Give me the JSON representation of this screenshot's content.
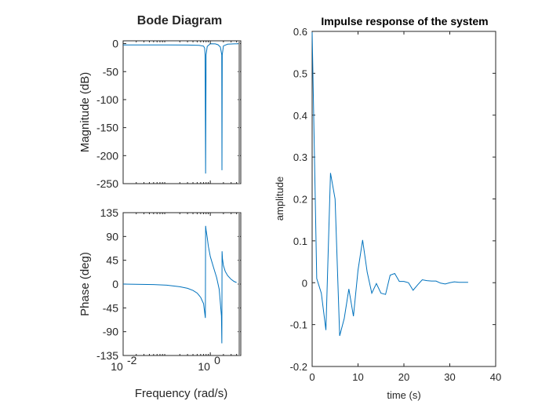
{
  "chart_data": [
    {
      "type": "line",
      "title": "Bode Diagram",
      "xlabel": "Frequency (rad/s)",
      "xscale": "log",
      "xlim": [
        0.01,
        5
      ],
      "x_tick_labels": [
        {
          "base": "10",
          "exp": "-2",
          "value": 0.01
        },
        {
          "base": "10",
          "exp": "0",
          "value": 1
        }
      ],
      "nyquist_line_x": 4.6,
      "colors": {
        "series": "#0072BD",
        "nyquist": "#999999"
      },
      "panels": [
        {
          "name": "magnitude",
          "ylabel": "Magnitude (dB)",
          "ylim": [
            -250,
            5
          ],
          "y_ticks": [
            0,
            -50,
            -100,
            -150,
            -200,
            -250
          ],
          "series": [
            {
              "x": [
                0.01,
                0.1,
                0.3,
                0.55,
                0.7,
                0.74,
                0.76,
                0.78,
                0.8,
                0.85,
                1.0,
                1.3,
                1.5,
                1.7,
                1.83,
                1.85,
                1.88,
                2.0,
                2.5,
                3.5,
                4.6
              ],
              "y": [
                -2.3,
                -2.4,
                -2.5,
                -3,
                -4.5,
                -8,
                -20,
                -232,
                -20,
                -5,
                -0.3,
                -0.5,
                -2,
                -6,
                -20,
                -226,
                -20,
                -4,
                -1,
                -0.5,
                -0.3
              ]
            }
          ]
        },
        {
          "name": "phase",
          "ylabel": "Phase (deg)",
          "ylim": [
            -135,
            135
          ],
          "y_ticks": [
            135,
            90,
            45,
            0,
            -45,
            -90,
            -135
          ],
          "series": [
            {
              "x": [
                0.01,
                0.05,
                0.1,
                0.2,
                0.3,
                0.4,
                0.5,
                0.6,
                0.7,
                0.77,
                0.78,
                0.8,
                0.85,
                0.9,
                1.0,
                1.2,
                1.4,
                1.6,
                1.8,
                1.84,
                1.86,
                1.9,
                2.0,
                2.2,
                2.5,
                3.0,
                3.5,
                4.0
              ],
              "y": [
                0,
                -1,
                -2,
                -5,
                -8,
                -12,
                -17,
                -25,
                -37,
                -64,
                110,
                102,
                88,
                72,
                52,
                30,
                12,
                -10,
                -60,
                -112,
                62,
                48,
                35,
                24,
                16,
                9,
                5,
                3
              ]
            }
          ]
        }
      ]
    },
    {
      "type": "line",
      "title": "Impulse response of the system",
      "xlabel": "time (s)",
      "ylabel": "amplitude",
      "xlim": [
        0,
        40
      ],
      "ylim": [
        -0.2,
        0.6
      ],
      "x_ticks": [
        0,
        10,
        20,
        30,
        40
      ],
      "y_ticks": [
        -0.2,
        -0.1,
        0,
        0.1,
        0.2,
        0.3,
        0.4,
        0.5,
        0.6
      ],
      "colors": {
        "series": "#0072BD"
      },
      "series": [
        {
          "x": [
            0,
            1,
            2,
            3,
            4,
            5,
            6,
            7,
            8,
            9,
            10,
            11,
            12,
            13,
            14,
            15,
            16,
            17,
            18,
            19,
            20,
            21,
            22,
            23,
            24,
            25,
            26,
            27,
            28,
            29,
            30,
            31,
            32,
            33,
            34
          ],
          "y": [
            0.598,
            0.01,
            -0.025,
            -0.113,
            0.262,
            0.2,
            -0.127,
            -0.085,
            -0.015,
            -0.08,
            0.03,
            0.102,
            0.025,
            -0.025,
            -0.002,
            -0.025,
            -0.028,
            0.018,
            0.022,
            0.003,
            0.003,
            0.0,
            -0.018,
            -0.005,
            0.007,
            0.005,
            0.004,
            0.004,
            -0.001,
            -0.003,
            0.0,
            0.002,
            0.001,
            0.001,
            0.001
          ]
        }
      ]
    }
  ]
}
